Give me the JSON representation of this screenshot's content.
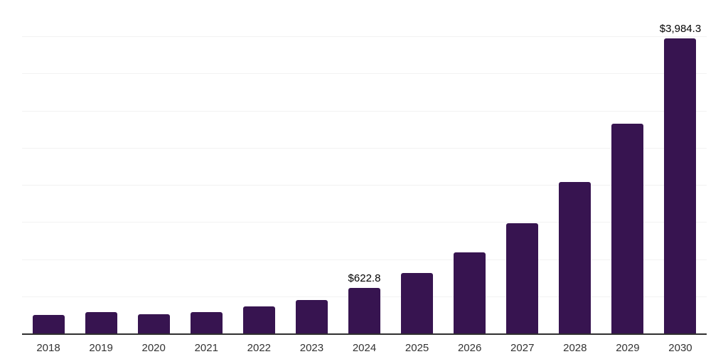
{
  "chart_data": {
    "type": "bar",
    "title": "",
    "xlabel": "",
    "ylabel": "",
    "categories": [
      "2018",
      "2019",
      "2020",
      "2021",
      "2022",
      "2023",
      "2024",
      "2025",
      "2026",
      "2027",
      "2028",
      "2029",
      "2030"
    ],
    "values": [
      255,
      295,
      270,
      295,
      375,
      460,
      622.8,
      820,
      1100,
      1495,
      2050,
      2835,
      3984.3
    ],
    "data_labels": [
      "",
      "",
      "",
      "",
      "",
      "",
      "$622.8",
      "",
      "",
      "",
      "",
      "",
      "$3,984.3"
    ],
    "ylim": [
      0,
      4500
    ],
    "gridline_step": 500,
    "grid": "horizontal-only",
    "legend_position": "none",
    "colors": {
      "bar_fill": "#371450",
      "axis_line": "#2f2f2f",
      "gridline": "#f2f2f2",
      "data_label_text": "#000000",
      "tick_label_text": "#333333",
      "background": "#ffffff"
    }
  }
}
